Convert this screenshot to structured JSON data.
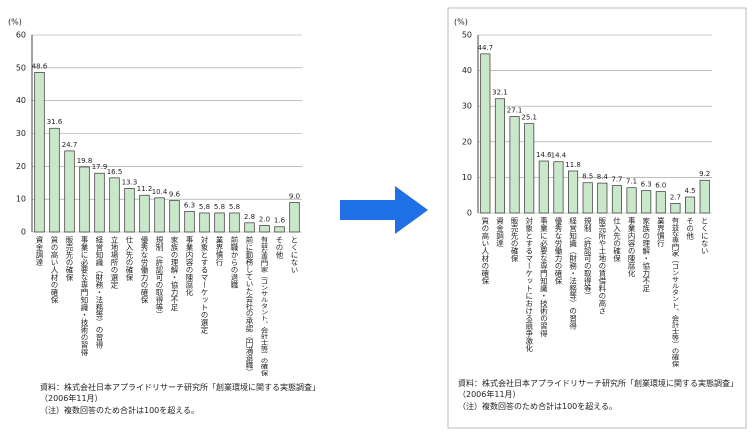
{
  "chart_data": [
    {
      "type": "bar",
      "y_label": "(%)",
      "color": "#c9e8c9",
      "categories": [
        "資金調達",
        "質の高い人材の確保",
        "販売先の確保",
        "事業に必要な専門知識・技術の習得",
        "経営知識（財務・法務等）の習得",
        "立地場所の選定",
        "仕入先の確保",
        "優秀な労働力の確保",
        "規制（許認可の取得等）",
        "家族の理解・協力不足",
        "事業内容の陳腐化",
        "対象とするマーケットの選定",
        "業界慣行",
        "前職からの退職",
        "前に勤務していた会社の承認（円満退職）",
        "有益な専門家（コンサルタント、会計士等）の確保",
        "その他",
        "とくにない"
      ],
      "values": [
        48.6,
        31.6,
        24.7,
        19.8,
        17.9,
        16.5,
        13.3,
        11.2,
        10.4,
        9.6,
        6.3,
        5.8,
        5.8,
        5.8,
        2.8,
        2.0,
        1.6,
        9.0
      ],
      "value_labels": [
        "48.6",
        "31.6",
        "24.7",
        "19.8",
        "17.9",
        "16.5",
        "13.3",
        "11.2",
        "10.4",
        "9.6",
        "6.3",
        "5.8",
        "5.8",
        "5.8",
        "2.8",
        "2.0",
        "1.6",
        "9.0"
      ],
      "ylim": [
        0,
        60
      ],
      "yticks": [
        0,
        10,
        20,
        30,
        40,
        50,
        60
      ],
      "source": "資料：株式会社日本アプライドリサーチ研究所「創業環境に関する実態調査」（2006年11月）",
      "note": "（注）複数回答のため合計は100を超える。"
    },
    {
      "type": "bar",
      "y_label": "(%)",
      "color": "#c9e8c9",
      "categories": [
        "質の高い人材の確保",
        "資金調達",
        "販売先の確保",
        "対象とするマーケットにおける競争激化",
        "事業に必要な専門知識・技術の習得",
        "優秀な労働力の確保",
        "経営知識（財務・法務等）の習得",
        "規制（許認可の取得等）",
        "販売所や土地の賃借料の高さ",
        "仕入先の確保",
        "事業内容の陳腐化",
        "家族の理解・協力不足",
        "業界慣行",
        "有益な専門家（コンサルタント、会計士等）の確保",
        "その他",
        "とくにない"
      ],
      "values": [
        44.7,
        32.1,
        27.1,
        25.1,
        14.6,
        14.4,
        11.8,
        8.5,
        8.4,
        7.7,
        7.1,
        6.3,
        6.0,
        2.7,
        4.5,
        9.2
      ],
      "value_labels": [
        "44.7",
        "32.1",
        "27.1",
        "25.1",
        "14.6",
        "14.4",
        "11.8",
        "8.5",
        "8.4",
        "7.7",
        "7.1",
        "6.3",
        "6.0",
        "2.7",
        "4.5",
        "9.2"
      ],
      "ylim": [
        0,
        50
      ],
      "yticks": [
        0,
        10,
        20,
        30,
        40,
        50
      ],
      "source": "資料：株式会社日本アプライドリサーチ研究所「創業環境に関する実態調査」（2006年11月）",
      "note": "（注）複数回答のため合計は100を超える。"
    }
  ]
}
